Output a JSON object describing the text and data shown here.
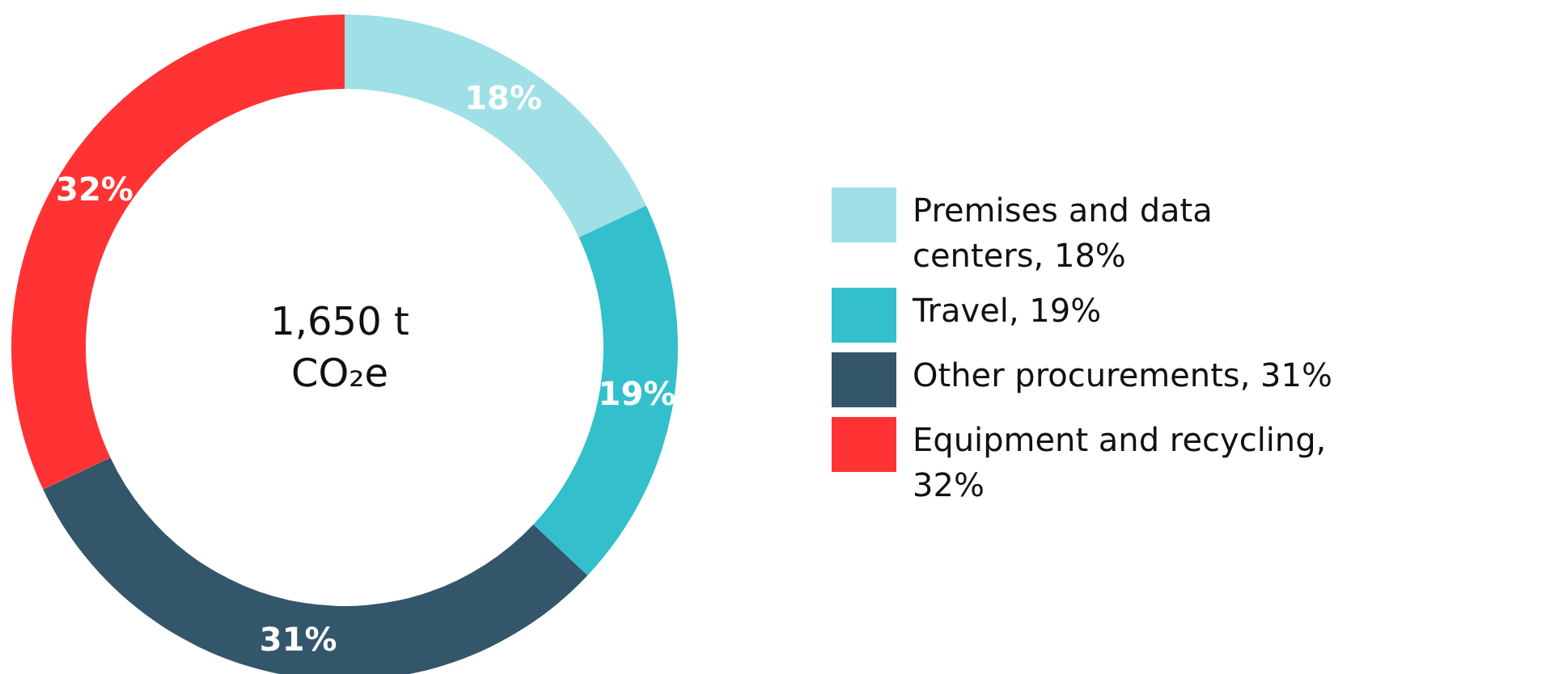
{
  "chart_data": {
    "type": "donut",
    "categories": [
      "Premises and data centers, 18%",
      "Travel, 19%",
      "Other procurements, 31%",
      "Equipment and recycling, 32%"
    ],
    "values": [
      18,
      19,
      31,
      32
    ],
    "colors": [
      "#9fe0e6",
      "#33c0cc",
      "#33566b",
      "#ff3333"
    ],
    "value_labels": [
      "18%",
      "19%",
      "31%",
      "32%"
    ],
    "annotations": [
      "1,650 t CO₂e"
    ],
    "legend": "right"
  }
}
